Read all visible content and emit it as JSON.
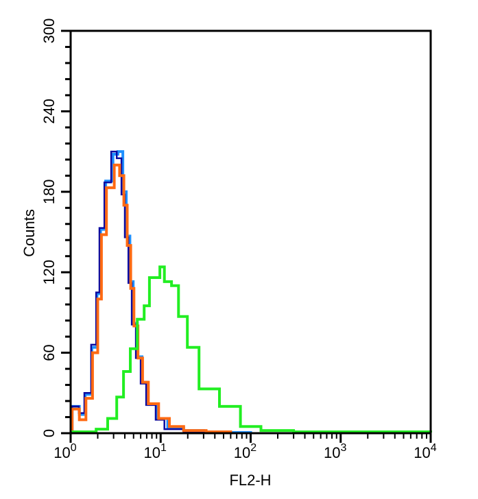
{
  "chart_data": {
    "type": "line",
    "title": "",
    "xlabel": "FL2-H",
    "ylabel": "Counts",
    "x_scale": "log",
    "xlim": [
      1,
      10000
    ],
    "ylim": [
      0,
      300
    ],
    "x_ticks": [
      1,
      10,
      100,
      1000,
      10000
    ],
    "x_tick_labels": [
      {
        "base": "10",
        "exp": "0"
      },
      {
        "base": "10",
        "exp": "1"
      },
      {
        "base": "10",
        "exp": "2"
      },
      {
        "base": "10",
        "exp": "3"
      },
      {
        "base": "10",
        "exp": "4"
      }
    ],
    "y_ticks": [
      0,
      60,
      120,
      180,
      240,
      300
    ],
    "y_tick_labels": [
      "0",
      "60",
      "120",
      "180",
      "240",
      "300"
    ],
    "y_minor_step": 12,
    "grid": false,
    "series": [
      {
        "color": "#1e90ff",
        "x": [
          1.0,
          1.04,
          1.25,
          1.45,
          1.72,
          1.96,
          2.15,
          2.45,
          2.95,
          3.35,
          3.8,
          4.15,
          4.55,
          4.95,
          5.5,
          6.2,
          7.2,
          9.2,
          12,
          18,
          30,
          50,
          100
        ],
        "y": [
          3,
          20,
          14,
          29,
          64,
          104,
          152,
          188,
          208,
          210,
          180,
          147,
          113,
          82,
          57,
          38,
          22,
          11,
          4,
          2,
          1,
          0.5,
          0
        ]
      },
      {
        "color": "#0a0aa0",
        "x": [
          1.0,
          1.04,
          1.23,
          1.42,
          1.69,
          1.92,
          2.09,
          2.37,
          2.82,
          3.25,
          3.67,
          4.0,
          4.38,
          4.77,
          5.3,
          6.0,
          6.9,
          8.8,
          11,
          18,
          30,
          60
        ],
        "y": [
          3,
          20,
          15,
          30,
          66,
          105,
          153,
          187,
          210,
          205,
          178,
          146,
          112,
          81,
          56,
          37,
          21,
          10,
          3,
          1,
          0.5,
          0
        ]
      },
      {
        "color": "#ff6a13",
        "x": [
          1.0,
          1.04,
          1.25,
          1.48,
          1.75,
          2.0,
          2.2,
          2.5,
          3.05,
          3.5,
          3.9,
          4.25,
          4.65,
          5.05,
          5.6,
          6.3,
          7.3,
          9.5,
          12.5,
          18,
          32,
          60
        ],
        "y": [
          3,
          18,
          10,
          26,
          60,
          100,
          148,
          183,
          200,
          192,
          170,
          140,
          108,
          80,
          56,
          38,
          22,
          11,
          5,
          2,
          1,
          0
        ]
      },
      {
        "color": "#22ee22",
        "x": [
          1.0,
          1.07,
          1.92,
          2.58,
          3.25,
          3.87,
          4.6,
          5.5,
          6.56,
          7.5,
          9.8,
          11,
          13.2,
          15.8,
          19.8,
          26.7,
          45,
          77,
          130,
          300,
          1000,
          10000
        ],
        "y": [
          0.5,
          1,
          3,
          11,
          27,
          46,
          63,
          85,
          95,
          116,
          124,
          113,
          110,
          87,
          64,
          33,
          20,
          5,
          2,
          1,
          1,
          0.5
        ]
      }
    ]
  }
}
